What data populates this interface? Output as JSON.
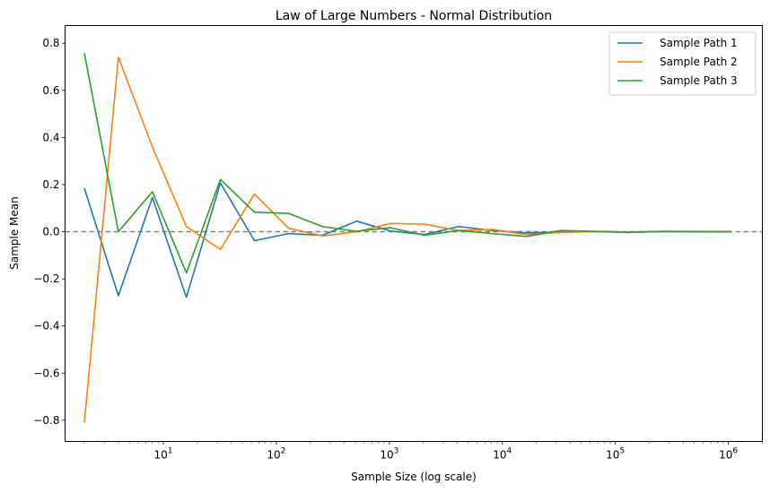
{
  "chart_data": {
    "type": "line",
    "title": "Law of Large Numbers - Normal Distribution",
    "xlabel": "Sample Size (log scale)",
    "ylabel": "Sample Mean",
    "x_scale": "log",
    "xlim": [
      1.35,
      2000000
    ],
    "ylim": [
      -0.89,
      0.875
    ],
    "x_ticks": [
      {
        "value": 10,
        "base": "10",
        "exp": "1"
      },
      {
        "value": 100,
        "base": "10",
        "exp": "2"
      },
      {
        "value": 1000,
        "base": "10",
        "exp": "3"
      },
      {
        "value": 10000,
        "base": "10",
        "exp": "4"
      },
      {
        "value": 100000,
        "base": "10",
        "exp": "5"
      },
      {
        "value": 1000000,
        "base": "10",
        "exp": "6"
      }
    ],
    "y_ticks": [
      {
        "value": 0.8,
        "label": "0.8"
      },
      {
        "value": 0.6,
        "label": "0.6"
      },
      {
        "value": 0.4,
        "label": "0.4"
      },
      {
        "value": 0.2,
        "label": "0.2"
      },
      {
        "value": 0.0,
        "label": "0.0"
      },
      {
        "value": -0.2,
        "label": "−0.2"
      },
      {
        "value": -0.4,
        "label": "−0.4"
      },
      {
        "value": -0.6,
        "label": "−0.6"
      },
      {
        "value": -0.8,
        "label": "−0.8"
      }
    ],
    "reference_line": {
      "y": 0.0,
      "style": "dashed",
      "color": "#808080"
    },
    "legend_position": "top-right",
    "x": [
      2,
      4,
      8,
      16,
      32,
      64,
      128,
      256,
      512,
      1024,
      2048,
      4096,
      8192,
      16384,
      32768,
      65536,
      131072,
      262144,
      524288,
      1048576
    ],
    "series": [
      {
        "name": "Sample Path 1",
        "color": "#1f77b4",
        "values": [
          0.185,
          -0.272,
          0.145,
          -0.278,
          0.207,
          -0.038,
          -0.008,
          -0.015,
          0.045,
          0.003,
          -0.012,
          0.022,
          0.005,
          -0.005,
          -0.002,
          0.001,
          -0.003,
          0.001,
          0.0,
          0.0
        ]
      },
      {
        "name": "Sample Path 2",
        "color": "#ff7f0e",
        "values": [
          -0.81,
          0.74,
          0.36,
          0.022,
          -0.075,
          0.16,
          0.015,
          -0.018,
          0.0,
          0.035,
          0.032,
          0.005,
          0.01,
          -0.012,
          -0.003,
          0.001,
          -0.002,
          0.001,
          0.0,
          0.0
        ]
      },
      {
        "name": "Sample Path 3",
        "color": "#2ca02c",
        "values": [
          0.758,
          0.0,
          0.17,
          -0.175,
          0.222,
          0.083,
          0.078,
          0.022,
          0.002,
          0.017,
          -0.015,
          0.005,
          -0.008,
          -0.02,
          0.005,
          0.002,
          -0.002,
          0.002,
          0.001,
          0.0
        ]
      }
    ]
  }
}
